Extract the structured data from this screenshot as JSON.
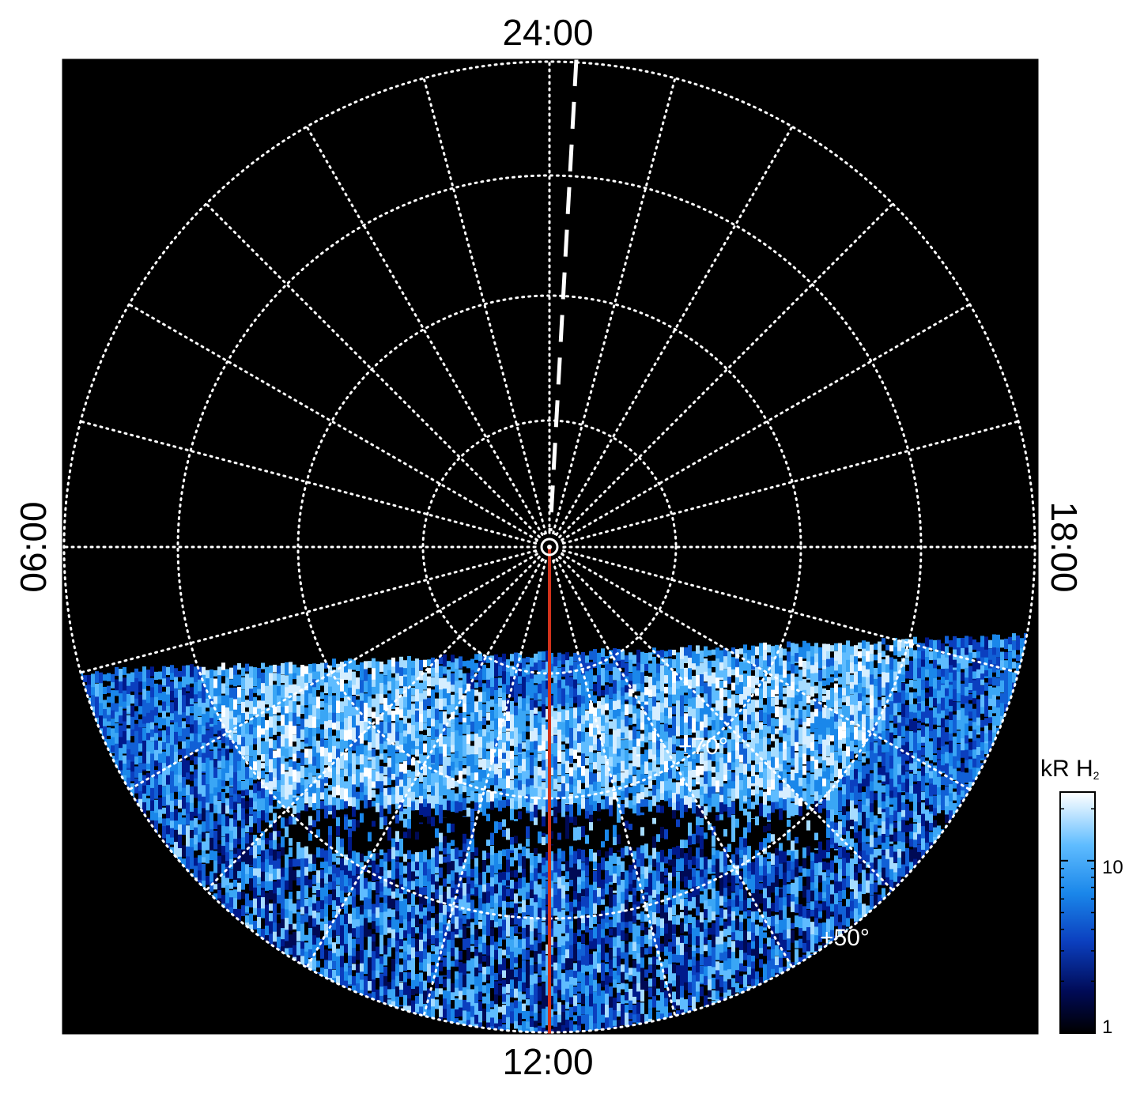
{
  "local_time_labels": {
    "top": "24:00",
    "bottom": "12:00",
    "left": "06:00",
    "right": "18:00"
  },
  "latitude_labels": {
    "lat70": "+70°",
    "lat50": "+50°"
  },
  "colorbar": {
    "title_main": "kR H",
    "title_sub": "2",
    "ticks": [
      "10",
      "1"
    ],
    "scale": "log",
    "range": [
      1,
      25
    ],
    "colors": [
      "#000000",
      "#000a55",
      "#0b3fbf",
      "#1a87ea",
      "#5fbcff",
      "#d6eeff",
      "#ffffff"
    ]
  },
  "colors": {
    "plot_background": "#000000",
    "grid": "#ffffff",
    "meridian_line": "#d2321b",
    "dashed_line": "#ffffff"
  }
}
